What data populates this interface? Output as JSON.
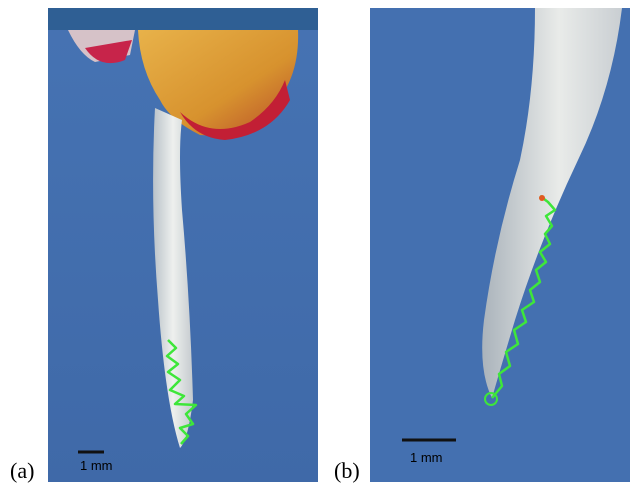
{
  "panels": [
    {
      "label": "(a)",
      "scale_bar": "1 mm"
    },
    {
      "label": "(b)",
      "scale_bar": "1 mm"
    }
  ]
}
